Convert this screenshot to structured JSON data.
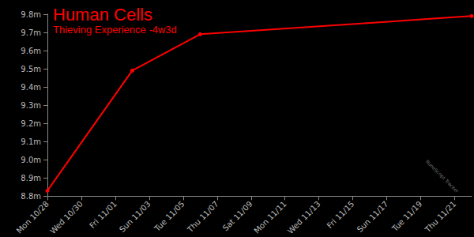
{
  "chart_data": {
    "type": "line",
    "title": "Human Cells",
    "subtitle": "Thieving Experience -4w3d",
    "categories": [
      "Mon 10/28",
      null,
      "Wed 10/30",
      null,
      "Fri 11/01",
      null,
      "Sun 11/03",
      null,
      "Tue 11/05",
      null,
      "Thu 11/07",
      null,
      "Sat 11/09",
      null,
      "Mon 11/11",
      null,
      "Wed 11/13",
      null,
      "Fri 11/15",
      null,
      "Sun 11/17",
      null,
      "Tue 11/19",
      null,
      "Thu 11/21",
      null
    ],
    "values": [
      8.83,
      null,
      null,
      null,
      null,
      9.49,
      null,
      null,
      null,
      9.69,
      null,
      null,
      null,
      null,
      null,
      null,
      null,
      null,
      null,
      null,
      null,
      null,
      null,
      null,
      null,
      9.79
    ],
    "color": "#ff0000",
    "marker": "circle",
    "ylim": [
      8.8,
      9.8
    ],
    "yticks": [
      {
        "value": 8.8,
        "label": "8.8m"
      },
      {
        "value": 8.9,
        "label": "8.9m"
      },
      {
        "value": 9.0,
        "label": "9.0m"
      },
      {
        "value": 9.1,
        "label": "9.1m"
      },
      {
        "value": 9.2,
        "label": "9.2m"
      },
      {
        "value": 9.3,
        "label": "9.3m"
      },
      {
        "value": 9.4,
        "label": "9.4m"
      },
      {
        "value": 9.5,
        "label": "9.5m"
      },
      {
        "value": 9.6,
        "label": "9.6m"
      },
      {
        "value": 9.7,
        "label": "9.7m"
      },
      {
        "value": 9.8,
        "label": "9.8m"
      }
    ],
    "grid": false,
    "annotations": [
      "RuneScript Tracker"
    ]
  }
}
